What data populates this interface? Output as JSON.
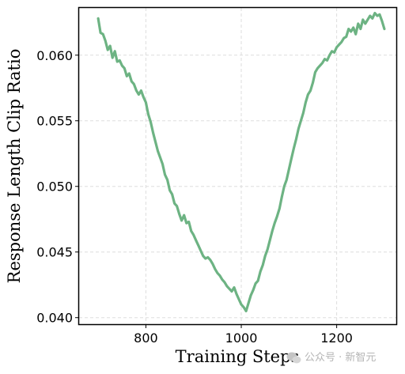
{
  "chart_data": {
    "type": "line",
    "title": "",
    "xlabel": "Training Steps",
    "ylabel": "Response Length Clip Ratio",
    "xlim": [
      660,
      1325
    ],
    "ylim": [
      0.0395,
      0.0636
    ],
    "xticks": [
      800,
      1000,
      1200
    ],
    "xtick_labels": [
      "800",
      "1000",
      "1200"
    ],
    "yticks": [
      0.04,
      0.045,
      0.05,
      0.055,
      0.06
    ],
    "ytick_labels": [
      "0.040",
      "0.045",
      "0.050",
      "0.055",
      "0.060"
    ],
    "grid": true,
    "legend": "none",
    "series": [
      {
        "color": "#6db383",
        "x": [
          700,
          705,
          710,
          715,
          720,
          725,
          730,
          735,
          740,
          745,
          750,
          755,
          760,
          765,
          770,
          775,
          780,
          785,
          790,
          795,
          800,
          805,
          810,
          815,
          820,
          825,
          830,
          835,
          840,
          845,
          850,
          855,
          860,
          865,
          870,
          875,
          880,
          885,
          890,
          895,
          900,
          905,
          910,
          915,
          920,
          925,
          930,
          935,
          940,
          945,
          950,
          955,
          960,
          965,
          970,
          975,
          980,
          985,
          990,
          995,
          1000,
          1005,
          1010,
          1015,
          1020,
          1025,
          1030,
          1035,
          1040,
          1045,
          1050,
          1055,
          1060,
          1065,
          1070,
          1075,
          1080,
          1085,
          1090,
          1095,
          1100,
          1105,
          1110,
          1115,
          1120,
          1125,
          1130,
          1135,
          1140,
          1145,
          1150,
          1155,
          1160,
          1165,
          1170,
          1175,
          1180,
          1185,
          1190,
          1195,
          1200,
          1205,
          1210,
          1215,
          1220,
          1225,
          1230,
          1235,
          1240,
          1245,
          1250,
          1255,
          1260,
          1265,
          1270,
          1275,
          1280,
          1285,
          1290,
          1295,
          1300
        ],
        "values": [
          0.0628,
          0.0617,
          0.0616,
          0.0611,
          0.0604,
          0.0607,
          0.0598,
          0.0603,
          0.0595,
          0.0596,
          0.0592,
          0.059,
          0.0584,
          0.0586,
          0.058,
          0.0578,
          0.0573,
          0.057,
          0.0573,
          0.0568,
          0.0564,
          0.0555,
          0.0549,
          0.0541,
          0.0534,
          0.0527,
          0.0522,
          0.0517,
          0.0509,
          0.0505,
          0.0497,
          0.0494,
          0.0487,
          0.0485,
          0.0479,
          0.0474,
          0.0478,
          0.0472,
          0.0473,
          0.0466,
          0.0463,
          0.0459,
          0.0455,
          0.0451,
          0.0447,
          0.0445,
          0.0446,
          0.0444,
          0.0441,
          0.0437,
          0.0434,
          0.0432,
          0.0429,
          0.0427,
          0.0424,
          0.0422,
          0.042,
          0.0423,
          0.0418,
          0.0414,
          0.041,
          0.0408,
          0.0405,
          0.0411,
          0.0417,
          0.0421,
          0.0426,
          0.0428,
          0.0435,
          0.044,
          0.0447,
          0.0452,
          0.0459,
          0.0466,
          0.0472,
          0.0477,
          0.0483,
          0.0492,
          0.05,
          0.0505,
          0.0513,
          0.0521,
          0.0529,
          0.0536,
          0.0544,
          0.055,
          0.0556,
          0.0564,
          0.057,
          0.0573,
          0.0579,
          0.0587,
          0.059,
          0.0592,
          0.0594,
          0.0597,
          0.0596,
          0.06,
          0.0603,
          0.0602,
          0.0606,
          0.0608,
          0.061,
          0.0613,
          0.0614,
          0.062,
          0.0618,
          0.0621,
          0.0616,
          0.0624,
          0.062,
          0.0627,
          0.0624,
          0.0627,
          0.063,
          0.0628,
          0.0632,
          0.063,
          0.0631,
          0.0626,
          0.062
        ]
      }
    ]
  },
  "watermark": {
    "text": "公众号 · 新智元",
    "icon": "wechat-icon"
  }
}
